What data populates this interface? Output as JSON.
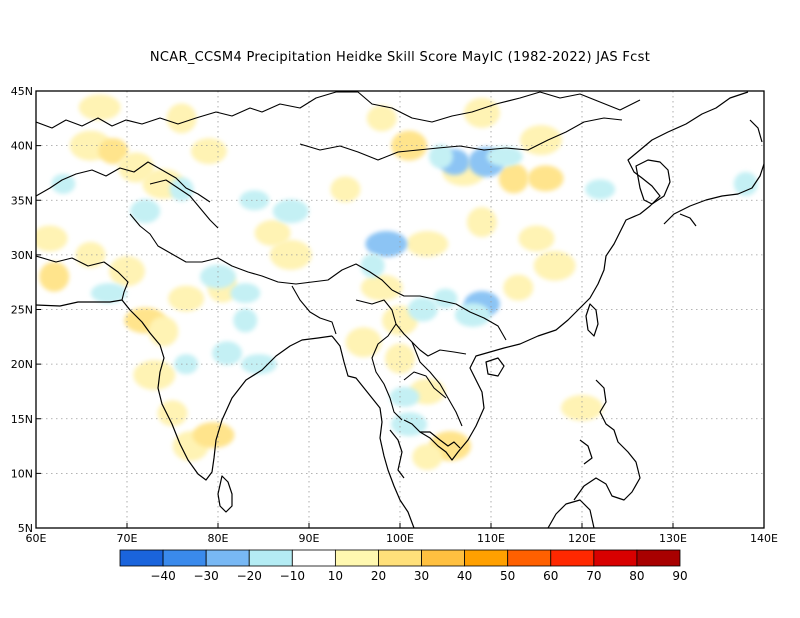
{
  "title": "NCAR_CCSM4  Precipitation Heidke Skill Score MayIC (1982-2022) JAS Fcst",
  "map": {
    "lon_range": [
      60,
      140
    ],
    "lat_range": [
      5,
      45
    ],
    "lon_ticks": [
      "60E",
      "70E",
      "80E",
      "90E",
      "100E",
      "110E",
      "120E",
      "130E",
      "140E"
    ],
    "lat_ticks": [
      "5N",
      "10N",
      "15N",
      "20N",
      "25N",
      "30N",
      "35N",
      "40N",
      "45N"
    ],
    "grid": "dotted",
    "skill_patches": [
      {
        "lon": 62.0,
        "lat": 28.0,
        "score": 30
      },
      {
        "lon": 61.5,
        "lat": 31.5,
        "score": 20
      },
      {
        "lon": 66.0,
        "lat": 40.0,
        "score": 20
      },
      {
        "lon": 68.5,
        "lat": 39.5,
        "score": 30
      },
      {
        "lon": 71.0,
        "lat": 38.0,
        "score": 20
      },
      {
        "lon": 67.0,
        "lat": 43.5,
        "score": 20
      },
      {
        "lon": 76.0,
        "lat": 42.5,
        "score": 20
      },
      {
        "lon": 79.0,
        "lat": 39.5,
        "score": 20
      },
      {
        "lon": 74.0,
        "lat": 36.5,
        "score": 20
      },
      {
        "lon": 66.0,
        "lat": 30.0,
        "score": 20
      },
      {
        "lon": 70.0,
        "lat": 28.5,
        "score": 20
      },
      {
        "lon": 72.0,
        "lat": 24.0,
        "score": 30
      },
      {
        "lon": 74.0,
        "lat": 23.0,
        "score": 20
      },
      {
        "lon": 76.5,
        "lat": 26.0,
        "score": 20
      },
      {
        "lon": 73.0,
        "lat": 19.0,
        "score": 20
      },
      {
        "lon": 75.0,
        "lat": 15.5,
        "score": 20
      },
      {
        "lon": 77.0,
        "lat": 12.5,
        "score": 20
      },
      {
        "lon": 79.5,
        "lat": 13.5,
        "score": 30
      },
      {
        "lon": 80.5,
        "lat": 27.0,
        "score": 20
      },
      {
        "lon": 86.0,
        "lat": 32.0,
        "score": 20
      },
      {
        "lon": 88.0,
        "lat": 30.0,
        "score": 20
      },
      {
        "lon": 94.0,
        "lat": 36.0,
        "score": 20
      },
      {
        "lon": 101.0,
        "lat": 40.0,
        "score": 30
      },
      {
        "lon": 107.0,
        "lat": 37.5,
        "score": 20
      },
      {
        "lon": 112.5,
        "lat": 37.0,
        "score": 30
      },
      {
        "lon": 116.0,
        "lat": 37.0,
        "score": 30
      },
      {
        "lon": 115.5,
        "lat": 40.5,
        "score": 20
      },
      {
        "lon": 98.0,
        "lat": 42.5,
        "score": 20
      },
      {
        "lon": 109.0,
        "lat": 43.0,
        "score": 20
      },
      {
        "lon": 103.0,
        "lat": 31.0,
        "score": 20
      },
      {
        "lon": 109.0,
        "lat": 33.0,
        "score": 20
      },
      {
        "lon": 115.0,
        "lat": 31.5,
        "score": 20
      },
      {
        "lon": 117.0,
        "lat": 29.0,
        "score": 20
      },
      {
        "lon": 113.0,
        "lat": 27.0,
        "score": 20
      },
      {
        "lon": 100.0,
        "lat": 24.0,
        "score": 20
      },
      {
        "lon": 98.0,
        "lat": 27.0,
        "score": 20
      },
      {
        "lon": 100.0,
        "lat": 20.5,
        "score": 20
      },
      {
        "lon": 103.0,
        "lat": 17.5,
        "score": 20
      },
      {
        "lon": 105.5,
        "lat": 12.5,
        "score": 30
      },
      {
        "lon": 103.0,
        "lat": 11.5,
        "score": 20
      },
      {
        "lon": 96.0,
        "lat": 22.0,
        "score": 20
      },
      {
        "lon": 120.0,
        "lat": 16.0,
        "score": 20
      },
      {
        "lon": 76.0,
        "lat": 36.0,
        "score": -10
      },
      {
        "lon": 84.0,
        "lat": 35.0,
        "score": -10
      },
      {
        "lon": 88.0,
        "lat": 34.0,
        "score": -10
      },
      {
        "lon": 106.0,
        "lat": 38.5,
        "score": -20
      },
      {
        "lon": 109.5,
        "lat": 38.5,
        "score": -20
      },
      {
        "lon": 111.5,
        "lat": 39.0,
        "score": -10
      },
      {
        "lon": 104.5,
        "lat": 39.0,
        "score": -10
      },
      {
        "lon": 109.0,
        "lat": 25.5,
        "score": -20
      },
      {
        "lon": 108.0,
        "lat": 24.5,
        "score": -10
      },
      {
        "lon": 105.0,
        "lat": 26.0,
        "score": -10
      },
      {
        "lon": 102.5,
        "lat": 25.0,
        "score": -10
      },
      {
        "lon": 98.5,
        "lat": 31.0,
        "score": -20
      },
      {
        "lon": 97.0,
        "lat": 29.0,
        "score": -10
      },
      {
        "lon": 83.0,
        "lat": 26.5,
        "score": -10
      },
      {
        "lon": 80.0,
        "lat": 28.0,
        "score": -10
      },
      {
        "lon": 76.5,
        "lat": 20.0,
        "score": -10
      },
      {
        "lon": 81.0,
        "lat": 21.0,
        "score": -10
      },
      {
        "lon": 84.5,
        "lat": 20.0,
        "score": -10
      },
      {
        "lon": 83.0,
        "lat": 24.0,
        "score": -10
      },
      {
        "lon": 100.5,
        "lat": 17.0,
        "score": -10
      },
      {
        "lon": 101.0,
        "lat": 14.5,
        "score": -10
      },
      {
        "lon": 63.0,
        "lat": 36.5,
        "score": -10
      },
      {
        "lon": 72.0,
        "lat": 34.0,
        "score": -10
      },
      {
        "lon": 68.0,
        "lat": 26.5,
        "score": -10
      },
      {
        "lon": 138.0,
        "lat": 36.5,
        "score": -10
      },
      {
        "lon": 122.0,
        "lat": 36.0,
        "score": -10
      }
    ]
  },
  "colorbar": {
    "colors": [
      "#1a64dc",
      "#3a8aec",
      "#78b8f4",
      "#b4ecf4",
      "#ffffff",
      "#fff8b0",
      "#ffe07a",
      "#ffc040",
      "#ffa000",
      "#ff6000",
      "#ff2800",
      "#d80000",
      "#a80000"
    ],
    "labels": [
      "−40",
      "−30",
      "−20",
      "−10",
      "10",
      "20",
      "30",
      "40",
      "50",
      "60",
      "70",
      "80",
      "90"
    ]
  },
  "style": {
    "positive_colors": {
      "20": "#fff3b4",
      "30": "#ffe48c"
    },
    "negative_colors": {
      "-10": "#c4f0f4",
      "-20": "#8cc4f4"
    }
  }
}
